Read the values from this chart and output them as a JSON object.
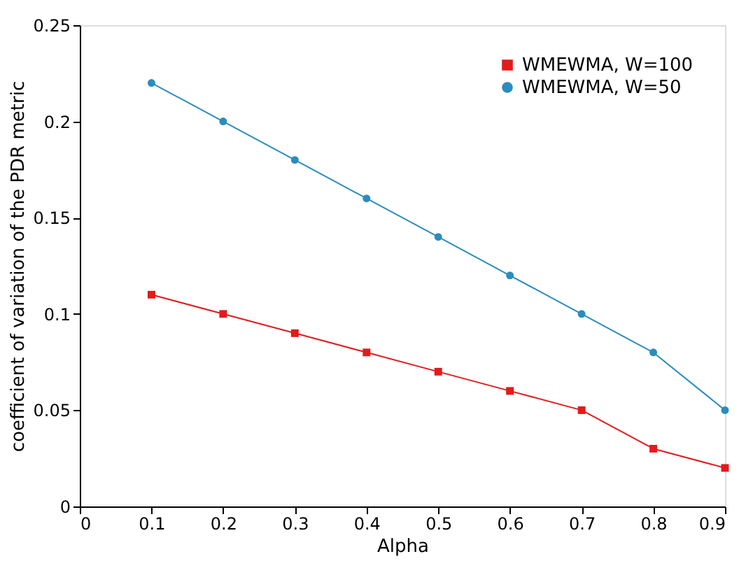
{
  "chart_data": {
    "type": "line",
    "xlabel": "Alpha",
    "ylabel": "coefficient of variation of the PDR metric",
    "x": [
      0.1,
      0.2,
      0.3,
      0.4,
      0.5,
      0.6,
      0.7,
      0.8,
      0.9
    ],
    "xlim": [
      0,
      0.9
    ],
    "xticks": [
      0,
      0.1,
      0.2,
      0.3,
      0.4,
      0.5,
      0.6,
      0.7,
      0.8,
      0.9
    ],
    "ylim": [
      0,
      0.25
    ],
    "yticks": [
      0,
      0.05,
      0.1,
      0.15,
      0.2,
      0.25
    ],
    "grid": false,
    "legend": "top right",
    "line_style": "solid",
    "series": [
      {
        "name": "WMEWMA, W=100",
        "color": "#e41a1c",
        "marker": "square",
        "values": [
          0.11,
          0.1,
          0.09,
          0.08,
          0.07,
          0.06,
          0.05,
          0.03,
          0.02
        ]
      },
      {
        "name": "WMEWMA, W=50",
        "color": "#2b8cbe",
        "marker": "circle",
        "values": [
          0.22,
          0.2,
          0.18,
          0.16,
          0.14,
          0.12,
          0.1,
          0.08,
          0.05
        ]
      }
    ]
  }
}
